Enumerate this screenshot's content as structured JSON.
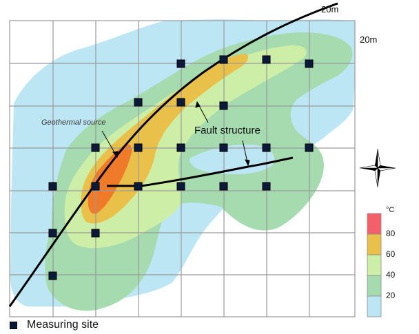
{
  "map": {
    "scale_top": "20m",
    "scale_right": "20m",
    "source_label": "Geothermal source",
    "fault_label": "Fault structure"
  },
  "legend": {
    "unit": "°C",
    "ticks": [
      "80",
      "60",
      "40",
      "20"
    ],
    "colors": [
      "#f4606a",
      "#e9c14a",
      "#cdeea6",
      "#a6dbb0",
      "#bde6f5"
    ],
    "site_label": "Measuring site"
  },
  "colors": {
    "zone_20": "#bde6f5",
    "zone_40": "#a6dbb0",
    "zone_60": "#cdeea6",
    "zone_80": "#e9c14a",
    "hot_core": "#ee7a2a",
    "site_marker": "#0b1a3a",
    "grid": "#9a9a9a"
  },
  "icons": [
    "compass-rose-icon",
    "measuring-site-icon"
  ]
}
